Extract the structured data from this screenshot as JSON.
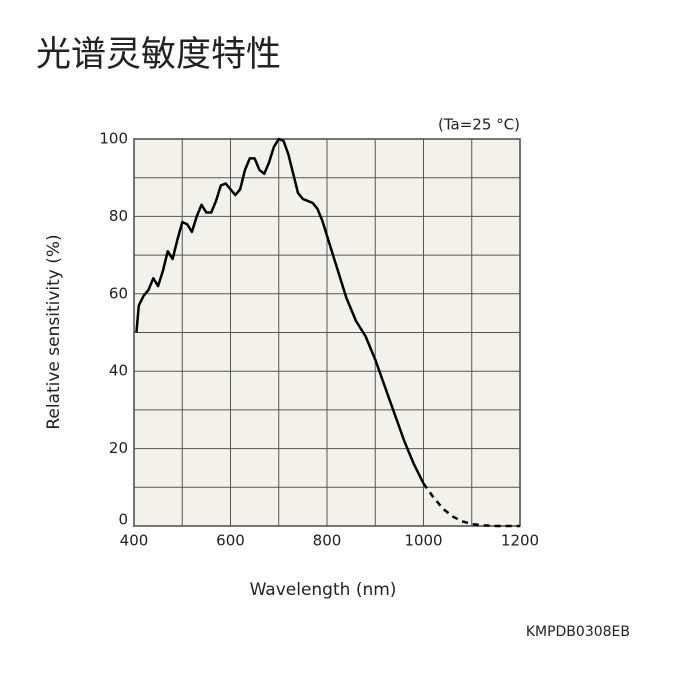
{
  "chart_data": {
    "type": "line",
    "title": "光谱灵敏度特性",
    "annotation": "(Ta=25 °C)",
    "x_label": "Wavelength (nm)",
    "y_label": "Relative sensitivity (%)",
    "code": "KMPDB0308EB",
    "xlim": [
      400,
      1200
    ],
    "xticks": [
      400,
      600,
      800,
      1000,
      1200
    ],
    "xminor": [
      500,
      700,
      900,
      1100
    ],
    "ylim": [
      0,
      100
    ],
    "yticks": [
      0,
      20,
      40,
      60,
      80,
      100
    ],
    "yminor": [
      10,
      30,
      50,
      70,
      90
    ],
    "grid": true,
    "background": "#f3f2ea",
    "x": [
      405,
      410,
      420,
      430,
      440,
      450,
      460,
      470,
      480,
      490,
      500,
      510,
      520,
      530,
      540,
      550,
      560,
      570,
      580,
      590,
      600,
      610,
      620,
      630,
      640,
      650,
      660,
      670,
      680,
      690,
      700,
      710,
      720,
      730,
      740,
      750,
      760,
      770,
      780,
      790,
      800,
      820,
      840,
      860,
      880,
      900,
      920,
      940,
      960,
      980,
      1000,
      1020,
      1040,
      1060,
      1080,
      1100,
      1120,
      1150,
      1200
    ],
    "series": [
      {
        "style": "solid",
        "color": "#000000",
        "values": [
          50,
          57,
          59.5,
          61,
          64,
          62,
          66,
          71,
          69,
          74,
          78.5,
          78,
          76,
          80,
          83,
          81,
          81,
          84,
          88,
          88.5,
          87,
          85.5,
          87,
          92,
          95,
          95,
          92,
          91,
          94,
          98,
          100,
          99.5,
          96,
          91,
          86,
          84.5,
          84,
          83.5,
          82,
          79,
          75,
          67,
          59,
          53,
          49,
          43,
          36,
          29,
          22,
          16,
          11,
          null,
          null,
          null,
          null,
          null,
          null,
          null,
          null
        ]
      },
      {
        "style": "dashed",
        "color": "#000000",
        "values": [
          null,
          null,
          null,
          null,
          null,
          null,
          null,
          null,
          null,
          null,
          null,
          null,
          null,
          null,
          null,
          null,
          null,
          null,
          null,
          null,
          null,
          null,
          null,
          null,
          null,
          null,
          null,
          null,
          null,
          null,
          null,
          null,
          null,
          null,
          null,
          null,
          null,
          null,
          null,
          null,
          null,
          null,
          null,
          null,
          null,
          null,
          null,
          null,
          null,
          null,
          11,
          7.5,
          4.5,
          2.5,
          1.2,
          0.5,
          0.2,
          0,
          0
        ]
      }
    ]
  }
}
